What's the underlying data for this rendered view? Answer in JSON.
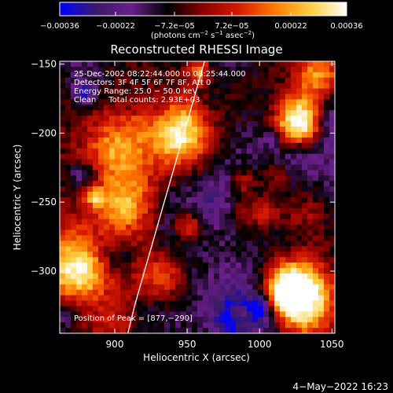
{
  "chart_data": {
    "type": "heatmap",
    "title": "Reconstructed RHESSI Image",
    "xlabel": "Heliocentric X (arcsec)",
    "ylabel": "Heliocentric Y (arcsec)",
    "xlim": [
      862,
      1052
    ],
    "ylim": [
      -345,
      -148
    ],
    "x_ticks": [
      900,
      950,
      1000,
      1050
    ],
    "x_tick_labels": [
      "900",
      "950",
      "1000",
      "1050"
    ],
    "y_ticks": [
      -150,
      -200,
      -250,
      -300
    ],
    "y_tick_labels": [
      "−150",
      "−200",
      "−250",
      "−300"
    ],
    "colorbar": {
      "range": [
        -0.00036,
        0.00036
      ],
      "ticks": [
        -0.00036,
        -0.00022,
        -7.2e-05,
        7.2e-05,
        0.00022,
        0.00036
      ],
      "tick_labels": [
        "−0.00036",
        "−0.00022",
        "−7.2e−05",
        "7.2e−05",
        "0.00022",
        "0.00036"
      ],
      "units_parts": [
        "(photons cm",
        "−2",
        " s",
        "−1",
        " asec",
        "−2",
        ")"
      ],
      "colors": [
        "#0000ff",
        "#3a1a6a",
        "#6a1f8a",
        "#000000",
        "#8a0000",
        "#d81a00",
        "#ff7a00",
        "#ffd040",
        "#ffffff"
      ]
    },
    "annotations": [
      "25-Dec-2002 08:22:44.000 to 08:25:44.000",
      "Detectors: 3F 4F 5F 6F 7F 8F, Att 0",
      "Energy Range: 25.0 − 50.0 keV",
      "Clean     Total counts: 2.93E+03",
      "Position of Peak = [877,−290]"
    ],
    "limb_curve": {
      "x": [
        962,
        956,
        950,
        944,
        938,
        932,
        926,
        920,
        914,
        909
      ],
      "y": [
        -148,
        -170,
        -192,
        -214,
        -236,
        -258,
        -280,
        -302,
        -324,
        -345
      ]
    },
    "peak": {
      "x": 877,
      "y": -290
    },
    "grid": false,
    "timestamp": "4−May−2022 16:23"
  }
}
